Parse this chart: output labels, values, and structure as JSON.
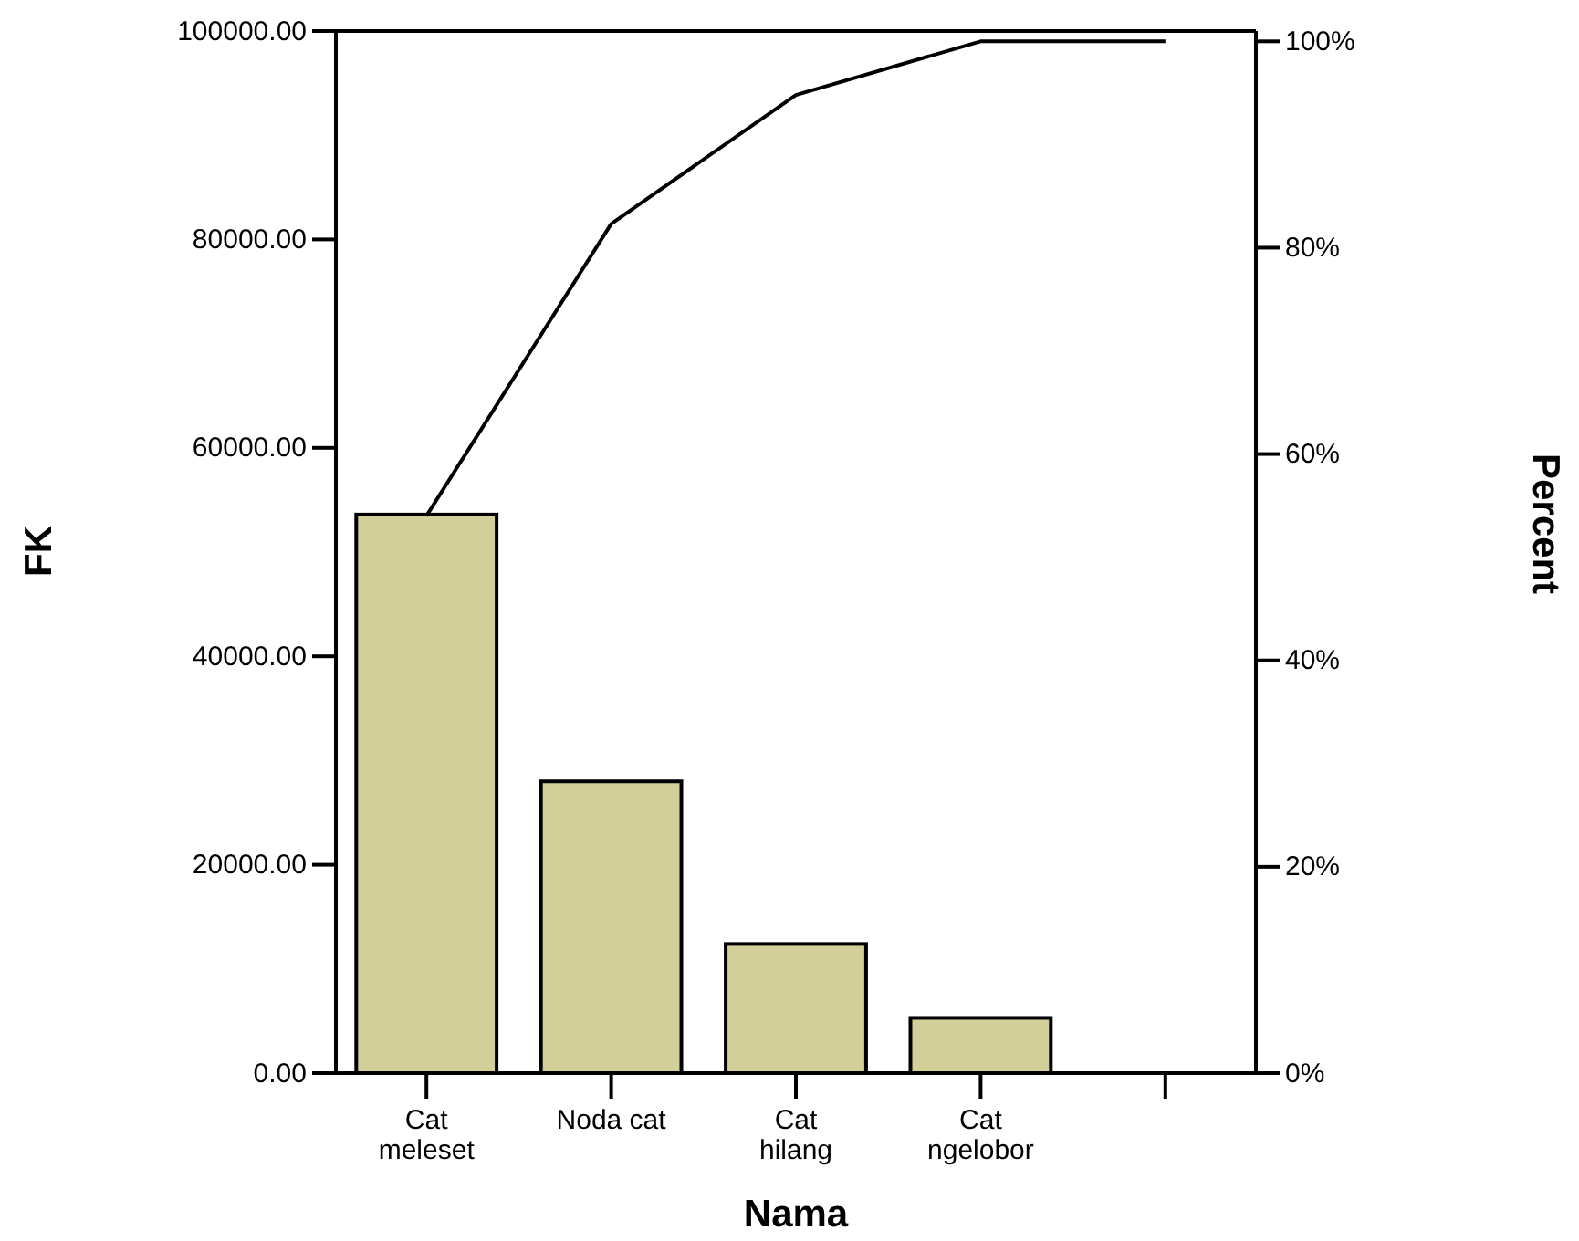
{
  "chart_data": {
    "type": "bar",
    "xlabel": "Nama",
    "ylabel": "FK",
    "y2label": "Percent",
    "categories": [
      "Cat meleset",
      "Noda cat",
      "Cat hilang",
      "Cat ngelobor",
      null
    ],
    "series": [
      {
        "color": "#d3cf98",
        "values": [
          53600,
          28000,
          12400,
          5300,
          0
        ]
      },
      {
        "type": "line",
        "axis": "y2",
        "color": "#000000",
        "values": [
          54,
          82.3,
          94.8,
          100,
          100
        ]
      }
    ],
    "ylim": [
      0,
      100000
    ],
    "yticks": [
      {
        "value": 0,
        "label": "0.00"
      },
      {
        "value": 20000,
        "label": "20000.00"
      },
      {
        "value": 40000,
        "label": "40000.00"
      },
      {
        "value": 60000,
        "label": "60000.00"
      },
      {
        "value": 80000,
        "label": "80000.00"
      },
      {
        "value": 100000,
        "label": "100000.00"
      }
    ],
    "y2lim": [
      0,
      101
    ],
    "y2ticks": [
      {
        "value": 0,
        "label": "0%"
      },
      {
        "value": 20,
        "label": "20%"
      },
      {
        "value": 40,
        "label": "40%"
      },
      {
        "value": 60,
        "label": "60%"
      },
      {
        "value": 80,
        "label": "80%"
      },
      {
        "value": 100,
        "label": "100%"
      }
    ],
    "grid": false,
    "marker": "none",
    "line_style": "solid"
  }
}
